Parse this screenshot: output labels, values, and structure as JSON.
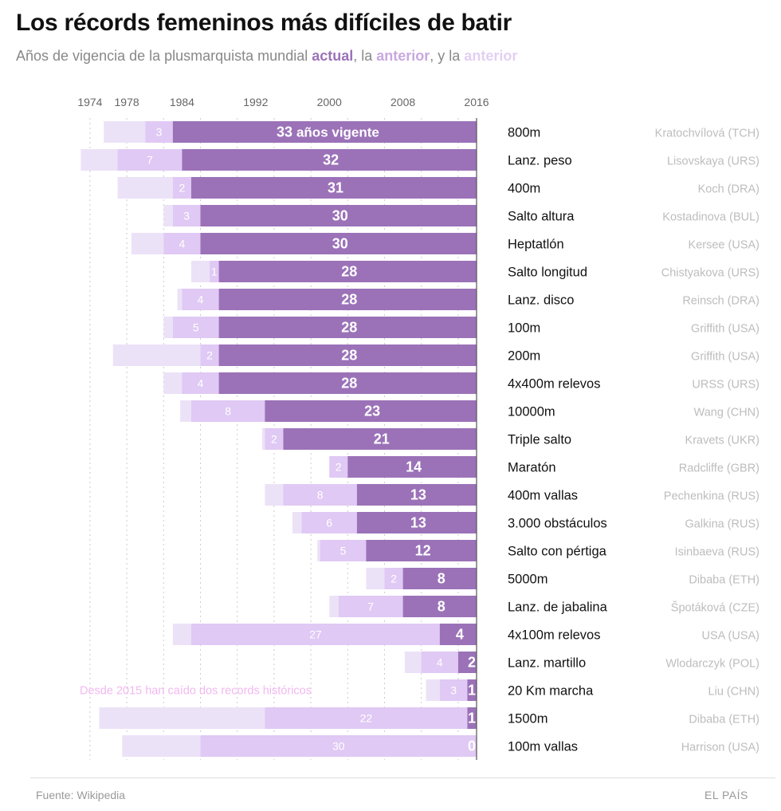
{
  "chart_data": {
    "type": "bar",
    "orientation": "horizontal-stacked",
    "title": "Los récords femeninos más difíciles de batir",
    "subtitle": {
      "text_before": "Años de vigencia de la plusmarquista mundial ",
      "highlight_current": "actual",
      "text_mid": ", la ",
      "highlight_previous": "anterior",
      "text_mid2": ", y la ",
      "highlight_previous2": "anterior"
    },
    "x_ticks": [
      "1974",
      "1978",
      "1984",
      "1992",
      "2000",
      "2008",
      "2016"
    ],
    "xlim": [
      1974,
      2016
    ],
    "current_year": 2016,
    "colors": {
      "current": "#9b72b8",
      "previous": "#e0c9f4",
      "previous2": "#ece2f7",
      "grid": "#cccccc",
      "axis": "#555555",
      "note": "#f2b8f0"
    },
    "series": [
      {
        "name": "actual",
        "label_suffix_first": "años vigente"
      },
      {
        "name": "anterior"
      },
      {
        "name": "anterior (2)"
      }
    ],
    "events": [
      {
        "event": "800m",
        "holder": "Kratochvílová (TCH)",
        "current_years": "33",
        "current_label": "33",
        "previous_years": "3",
        "previous2_years": 4.5,
        "first": true
      },
      {
        "event": "Lanz. peso",
        "holder": "Lisovskaya (URS)",
        "current_years": "32",
        "current_label": "32",
        "previous_years": "7",
        "previous2_years": 4
      },
      {
        "event": "400m",
        "holder": "Koch (DRA)",
        "current_years": "31",
        "current_label": "31",
        "previous_years": "2",
        "previous2_years": 6
      },
      {
        "event": "Salto altura",
        "holder": "Kostadinova (BUL)",
        "current_years": "30",
        "current_label": "30",
        "previous_years": "3",
        "previous2_years": 1
      },
      {
        "event": "Heptatlón",
        "holder": "Kersee (USA)",
        "current_years": "30",
        "current_label": "30",
        "previous_years": "4",
        "previous2_years": 3.5
      },
      {
        "event": "Salto longitud",
        "holder": "Chistyakova (URS)",
        "current_years": "28",
        "current_label": "28",
        "previous_years": "1",
        "previous2_years": 2
      },
      {
        "event": "Lanz. disco",
        "holder": "Reinsch (DRA)",
        "current_years": "28",
        "current_label": "28",
        "previous_years": "4",
        "previous2_years": 0.5
      },
      {
        "event": "100m",
        "holder": "Griffith (USA)",
        "current_years": "28",
        "current_label": "28",
        "previous_years": "5",
        "previous2_years": 1
      },
      {
        "event": "200m",
        "holder": "Griffith (USA)",
        "current_years": "28",
        "current_label": "28",
        "previous_years": "2",
        "previous2_years": 9.5
      },
      {
        "event": "4x400m relevos",
        "holder": "URSS (URS)",
        "current_years": "28",
        "current_label": "28",
        "previous_years": "4",
        "previous2_years": 2
      },
      {
        "event": "10000m",
        "holder": "Wang (CHN)",
        "current_years": "23",
        "current_label": "23",
        "previous_years": "8",
        "previous2_years": 1.2
      },
      {
        "event": "Triple salto",
        "holder": "Kravets (UKR)",
        "current_years": "21",
        "current_label": "21",
        "previous_years": "2",
        "previous2_years": 0.3
      },
      {
        "event": "Maratón",
        "holder": "Radcliffe (GBR)",
        "current_years": "14",
        "current_label": "14",
        "previous_years": "2",
        "previous2_years": 0
      },
      {
        "event": "400m vallas",
        "holder": "Pechenkina (RUS)",
        "current_years": "13",
        "current_label": "13",
        "previous_years": "8",
        "previous2_years": 2
      },
      {
        "event": "3.000 obstáculos",
        "holder": "Galkina (RUS)",
        "current_years": "13",
        "current_label": "13",
        "previous_years": "6",
        "previous2_years": 1
      },
      {
        "event": "Salto con pértiga",
        "holder": "Isinbaeva (RUS)",
        "current_years": "12",
        "current_label": "12",
        "previous_years": "5",
        "previous2_years": 0.3
      },
      {
        "event": "5000m",
        "holder": "Dibaba (ETH)",
        "current_years": "8",
        "current_label": "8",
        "previous_years": "2",
        "previous2_years": 2
      },
      {
        "event": "Lanz. de jabalina",
        "holder": "Špotáková (CZE)",
        "current_years": "8",
        "current_label": "8",
        "previous_years": "7",
        "previous2_years": 1
      },
      {
        "event": "4x100m relevos",
        "holder": "USA (USA)",
        "current_years": "4",
        "current_label": "4",
        "previous_years": "27",
        "previous2_years": 2
      },
      {
        "event": "Lanz. martillo",
        "holder": "Wlodarczyk (POL)",
        "current_years": "2",
        "current_label": "2",
        "previous_years": "4",
        "previous2_years": 1.8
      },
      {
        "event": "20 Km marcha",
        "holder": "Liu (CHN)",
        "current_years": "1",
        "current_label": "1",
        "previous_years": "3",
        "previous2_years": 1.5
      },
      {
        "event": "1500m",
        "holder": "Dibaba (ETH)",
        "current_years": "1",
        "current_label": "1",
        "previous_years": "22",
        "previous2_years": 18
      },
      {
        "event": "100m vallas",
        "holder": "Harrison (USA)",
        "current_years": "0",
        "current_label": "0",
        "previous_years": "30",
        "previous2_years": 8.5
      }
    ],
    "annotation": "Desde 2015 han caído dos records históricos"
  },
  "footer": {
    "source": "Fuente: Wikipedia",
    "brand": "EL PAÍS"
  }
}
